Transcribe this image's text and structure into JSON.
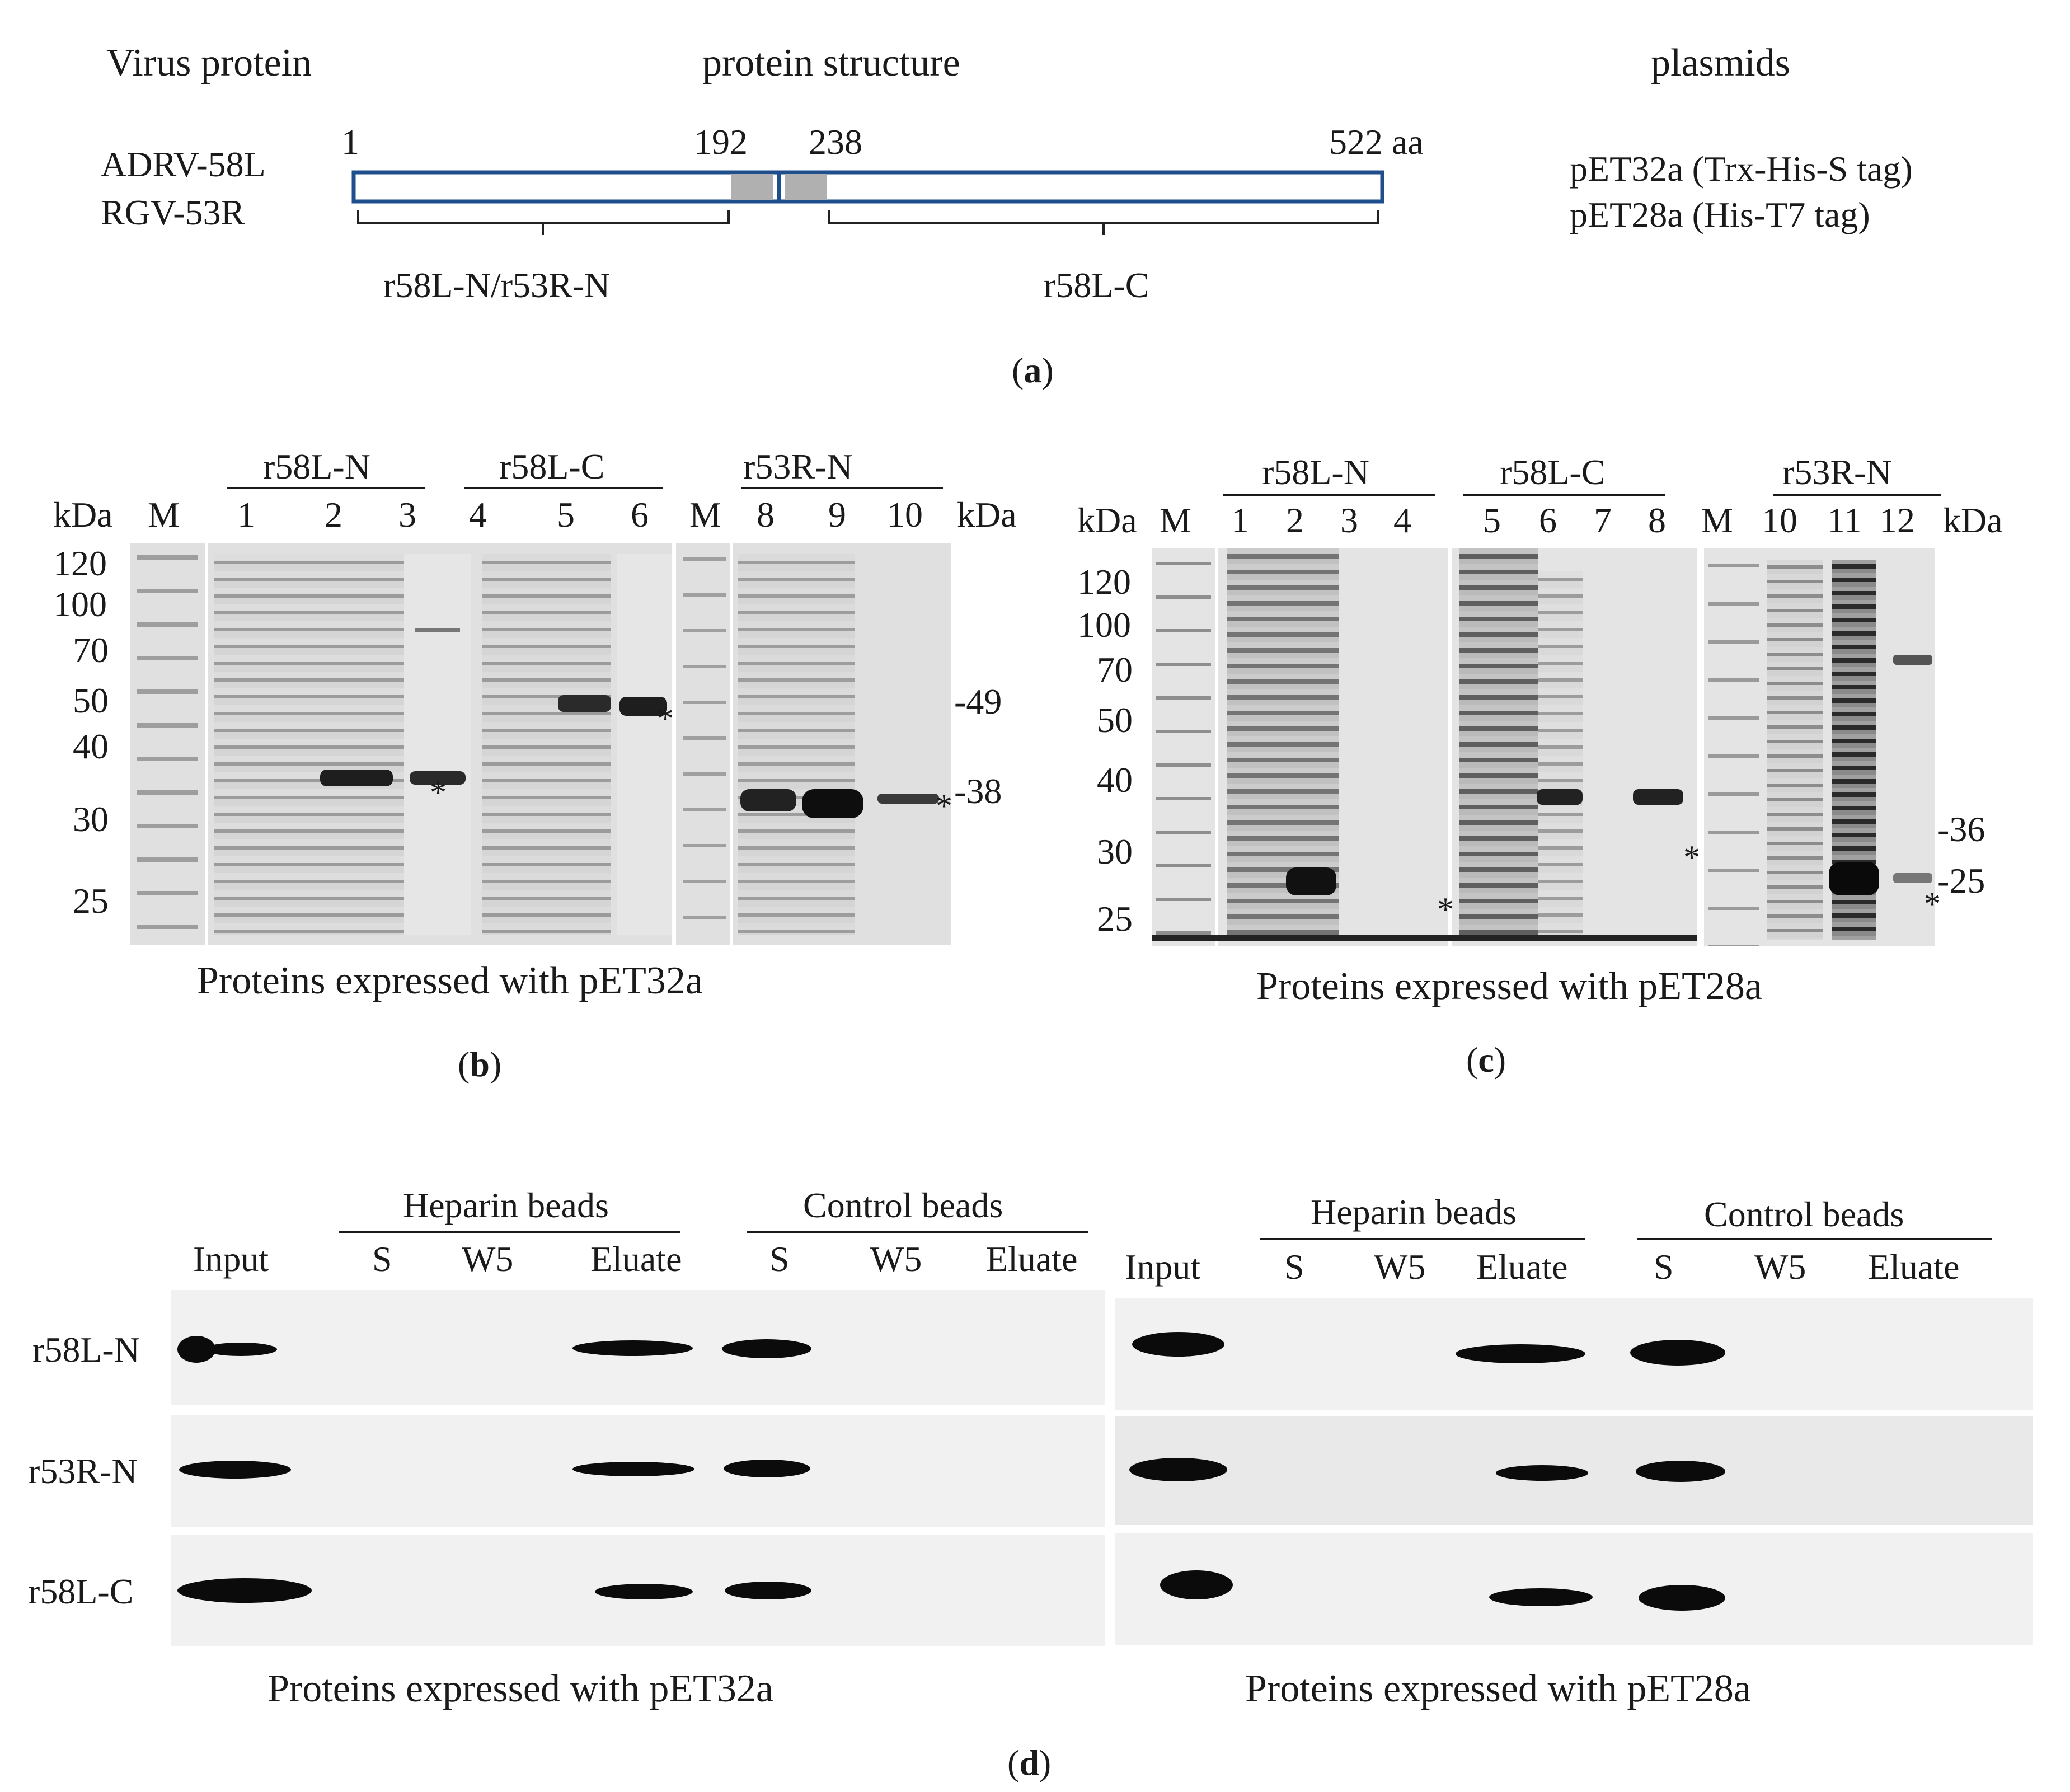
{
  "panel_a": {
    "col_virus": "Virus protein",
    "col_structure": "protein structure",
    "col_plasmids": "plasmids",
    "proteins": [
      "ADRV-58L",
      "RGV-53R"
    ],
    "pos_1": "1",
    "pos_192": "192",
    "pos_238": "238",
    "pos_522": "522 aa",
    "fragment_n": "r58L-N/r53R-N",
    "fragment_c": "r58L-C",
    "plasmid_1": "pET32a (Trx-His-S tag)",
    "plasmid_2": "pET28a (His-T7 tag)",
    "label": "a",
    "domain_fill": "#b0b0b0",
    "outline_color": "#1f4e8c"
  },
  "panel_b": {
    "group_1": "r58L-N",
    "group_2": "r58L-C",
    "group_3": "r53R-N",
    "lanes": [
      "M",
      "1",
      "2",
      "3",
      "4",
      "5",
      "6",
      "M",
      "8",
      "9",
      "10"
    ],
    "kda_left": "kDa",
    "kda_right": "kDa",
    "markers": [
      "120",
      "100",
      "70",
      "50",
      "40",
      "30",
      "25"
    ],
    "right_49": "-49",
    "right_38": "-38",
    "star": "*",
    "caption": "Proteins expressed with pET32a",
    "label": "b"
  },
  "panel_c": {
    "group_1": "r58L-N",
    "group_2": "r58L-C",
    "group_3": "r53R-N",
    "lanes": [
      "M",
      "1",
      "2",
      "3",
      "4",
      "5",
      "6",
      "7",
      "8",
      "M",
      "10",
      "11",
      "12"
    ],
    "kda_left": "kDa",
    "kda_right": "kDa",
    "markers": [
      "120",
      "100",
      "70",
      "50",
      "40",
      "30",
      "25"
    ],
    "right_36": "-36",
    "right_25": "-25",
    "star": "*",
    "caption": "Proteins expressed with pET28a",
    "label": "c"
  },
  "panel_d": {
    "heparin": "Heparin beads",
    "control": "Control beads",
    "col_input": "Input",
    "col_s": "S",
    "col_w5": "W5",
    "col_eluate": "Eluate",
    "rows": [
      "r58L-N",
      "r53R-N",
      "r58L-C"
    ],
    "caption_left": "Proteins expressed with pET32a",
    "caption_right": "Proteins expressed with pET28a",
    "label": "d"
  }
}
